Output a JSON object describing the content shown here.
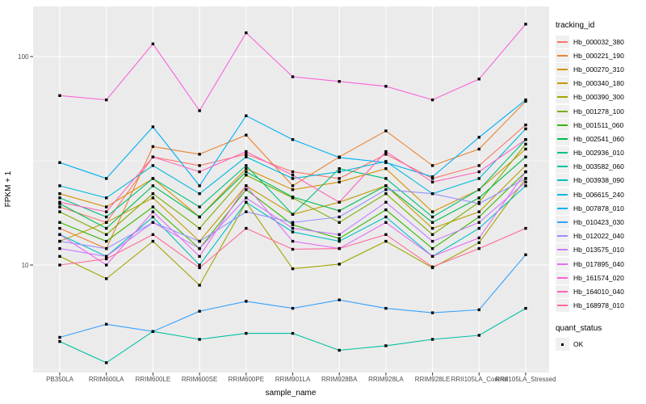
{
  "chart_data": {
    "type": "line",
    "xlabel": "sample_name",
    "ylabel": "FPKM + 1",
    "yscale": "log10",
    "ylim": [
      2.8,
      160
    ],
    "yticks": [
      10,
      100
    ],
    "ytick_labels": [
      "10",
      "100"
    ],
    "minor_grid_values": [
      3.162,
      31.62
    ],
    "grid": "on",
    "panel_bg": "#EBEBEB",
    "grid_color": "#FFFFFF",
    "marker": "black-square",
    "marker_color": "#000000",
    "categories": [
      "PB350LA",
      "RRIM600LA",
      "RRIM600LE",
      "RRIM600SE",
      "RRIM600PE",
      "RRIM901LA",
      "RRIM928BA",
      "RRIM928LA",
      "RRIM928LE",
      "RRII105LA_Control",
      "RRII105LA_Stressed"
    ],
    "legend": {
      "title": "tracking_id",
      "position": "right"
    },
    "quant_status": {
      "title": "quant_status",
      "ok_label": "OK",
      "marker": "black-square"
    },
    "series": [
      {
        "name": "Hb_000032_380",
        "color": "#F8766D",
        "values": [
          19,
          16,
          33,
          30,
          34,
          28,
          26,
          34,
          26,
          30,
          47
        ]
      },
      {
        "name": "Hb_000221_190",
        "color": "#EA8331",
        "values": [
          15,
          12,
          37,
          34,
          42,
          24,
          33,
          44,
          30,
          36,
          61
        ]
      },
      {
        "name": "Hb_000270_310",
        "color": "#D89000",
        "values": [
          22,
          19,
          26,
          17,
          29,
          23,
          25,
          29,
          18,
          23,
          36
        ]
      },
      {
        "name": "Hb_000340_180",
        "color": "#C09B00",
        "values": [
          13,
          16,
          21,
          13,
          24,
          17.5,
          20,
          24,
          15,
          18,
          30
        ]
      },
      {
        "name": "Hb_000390_300",
        "color": "#A3A500",
        "values": [
          11,
          8.6,
          13,
          8,
          20,
          9.6,
          10.1,
          13,
          9.7,
          12.8,
          26
        ]
      },
      {
        "name": "Hb_001278_100",
        "color": "#7CAE00",
        "values": [
          18,
          14,
          22,
          15,
          27,
          21,
          16,
          22,
          14,
          20,
          38
        ]
      },
      {
        "name": "Hb_001511_060",
        "color": "#39B600",
        "values": [
          16,
          13,
          19,
          12,
          23,
          15.6,
          13.4,
          18.4,
          12,
          17,
          28
        ]
      },
      {
        "name": "Hb_002541_060",
        "color": "#00BB4E",
        "values": [
          19.7,
          15,
          24,
          17,
          28,
          21.2,
          18.2,
          24,
          16,
          21,
          33
        ]
      },
      {
        "name": "Hb_002936_010",
        "color": "#00BF7D",
        "values": [
          21,
          17,
          26,
          19,
          30,
          17.5,
          29,
          26,
          17,
          23,
          40
        ]
      },
      {
        "name": "Hb_003582_060",
        "color": "#00C1A3",
        "values": [
          4.3,
          3.4,
          4.8,
          4.4,
          4.7,
          4.7,
          3.9,
          4.1,
          4.4,
          4.6,
          6.2
        ]
      },
      {
        "name": "Hb_003938_090",
        "color": "#00BFC4",
        "values": [
          14,
          11,
          17,
          10,
          20,
          14.4,
          13,
          17,
          11,
          15,
          24
        ]
      },
      {
        "name": "Hb_006615_240",
        "color": "#00BAE0",
        "values": [
          24,
          21,
          30,
          22,
          33,
          26,
          28,
          31.4,
          22,
          26,
          45
        ]
      },
      {
        "name": "Hb_007878_010",
        "color": "#00B0F6",
        "values": [
          31,
          26,
          46,
          24,
          52,
          40,
          32.8,
          31,
          26.5,
          41,
          62
        ]
      },
      {
        "name": "Hb_010423_030",
        "color": "#35A2FF",
        "values": [
          4.5,
          5.2,
          4.8,
          6,
          6.7,
          6.2,
          6.8,
          6.2,
          5.9,
          6.1,
          11.2
        ]
      },
      {
        "name": "Hb_012022_040",
        "color": "#9590FF",
        "values": [
          13,
          12,
          16,
          13,
          18,
          16,
          17,
          23,
          22,
          19.7,
          26
        ]
      },
      {
        "name": "Hb_013575_010",
        "color": "#C77CFF",
        "values": [
          12,
          11,
          16,
          12,
          21,
          15,
          14,
          20,
          13,
          16,
          25
        ]
      },
      {
        "name": "Hb_017895_040",
        "color": "#E76BF3",
        "values": [
          14,
          10,
          18,
          11,
          24,
          13,
          12,
          16,
          11,
          13.5,
          28
        ]
      },
      {
        "name": "Hb_161574_020",
        "color": "#FA62DB",
        "values": [
          65,
          62,
          115,
          55,
          130,
          80,
          76,
          72,
          62,
          78,
          143
        ]
      },
      {
        "name": "Hb_164010_040",
        "color": "#FF62BC",
        "values": [
          20,
          18,
          33,
          28,
          35,
          27,
          20,
          35,
          25,
          28,
          40
        ]
      },
      {
        "name": "Hb_168978_010",
        "color": "#FF6A98",
        "values": [
          10,
          10.7,
          14,
          9.7,
          15,
          11.9,
          12,
          14,
          9.8,
          12,
          15
        ]
      }
    ]
  }
}
